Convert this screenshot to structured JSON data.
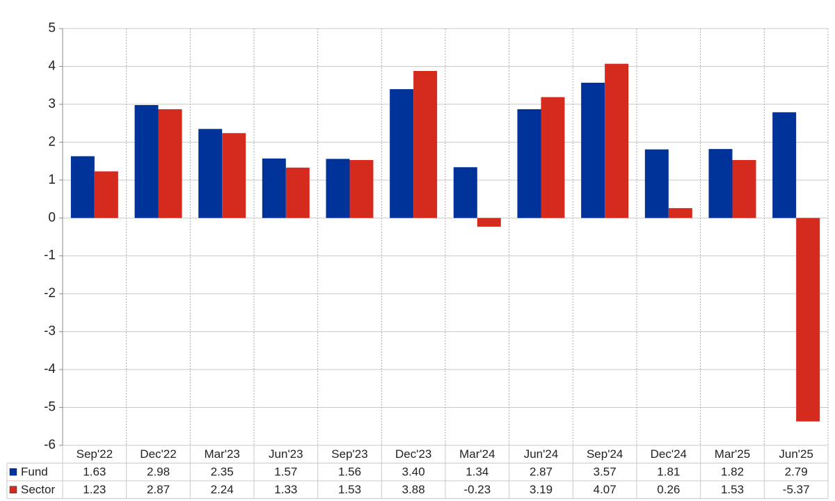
{
  "chart_data": {
    "type": "bar",
    "categories": [
      "Sep'22",
      "Dec'22",
      "Mar'23",
      "Jun'23",
      "Sep'23",
      "Dec'23",
      "Mar'24",
      "Jun'24",
      "Sep'24",
      "Dec'24",
      "Mar'25",
      "Jun'25"
    ],
    "series": [
      {
        "name": "Fund",
        "color": "#003399",
        "values": [
          1.63,
          2.98,
          2.35,
          1.57,
          1.56,
          3.4,
          1.34,
          2.87,
          3.57,
          1.81,
          1.82,
          2.79
        ],
        "value_labels": [
          "1.63",
          "2.98",
          "2.35",
          "1.57",
          "1.56",
          "3.40",
          "1.34",
          "2.87",
          "3.57",
          "1.81",
          "1.82",
          "2.79"
        ]
      },
      {
        "name": "Sector",
        "color": "#d52b1e",
        "values": [
          1.23,
          2.87,
          2.24,
          1.33,
          1.53,
          3.88,
          -0.23,
          3.19,
          4.07,
          0.26,
          1.53,
          -5.37
        ],
        "value_labels": [
          "1.23",
          "2.87",
          "2.24",
          "1.33",
          "1.53",
          "3.88",
          "-0.23",
          "3.19",
          "4.07",
          "0.26",
          "1.53",
          "-5.37"
        ]
      }
    ],
    "ylim": [
      -6,
      5
    ],
    "yticks": [
      -6,
      -5,
      -4,
      -3,
      -2,
      -1,
      0,
      1,
      2,
      3,
      4,
      5
    ],
    "grid": true
  }
}
